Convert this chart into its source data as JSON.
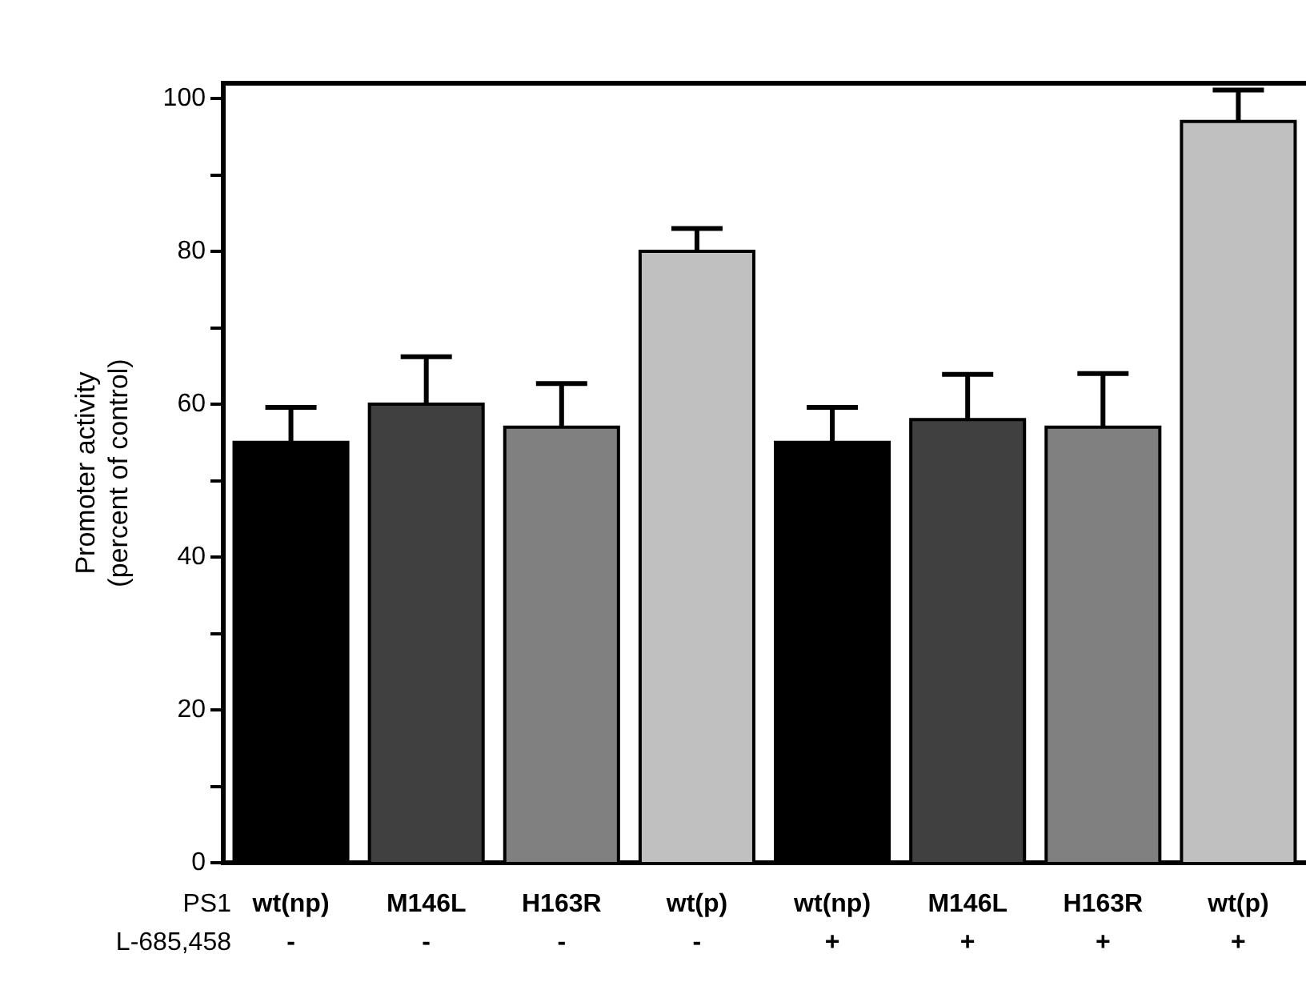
{
  "chart_data": {
    "type": "bar",
    "ylabel": "Promoter activity\n(percent of control)",
    "categories": [
      "wt(np)\n-",
      "M146L\n-",
      "H163R\n-",
      "wt(p)\n-",
      "wt(np)\n+",
      "M146L\n+",
      "H163R\n+",
      "wt(p)\n+"
    ],
    "values": [
      55,
      60,
      57,
      80,
      55,
      58,
      57,
      97
    ],
    "colors": [
      "#000000",
      "#404040",
      "#808080",
      "#c0c0c0",
      "#000000",
      "#404040",
      "#808080",
      "#c0c0c0"
    ],
    "errors": [
      [
        55,
        59.6
      ],
      [
        60,
        66.2
      ],
      [
        57,
        62.7
      ],
      [
        80,
        83
      ],
      [
        55,
        59.6
      ],
      [
        58,
        63.9
      ],
      [
        57,
        64
      ],
      [
        97,
        101.1
      ]
    ],
    "ylim": [
      0,
      102
    ],
    "yticks": [
      0,
      {
        "value": 10,
        "label": null
      },
      20,
      {
        "value": 30,
        "label": null
      },
      40,
      {
        "value": 50,
        "label": null
      },
      60,
      {
        "value": 70,
        "label": null
      },
      80,
      {
        "value": 90,
        "label": null
      },
      100
    ],
    "annotations": [
      "PS1",
      "L-685,458"
    ],
    "grid": false,
    "legend": false
  }
}
